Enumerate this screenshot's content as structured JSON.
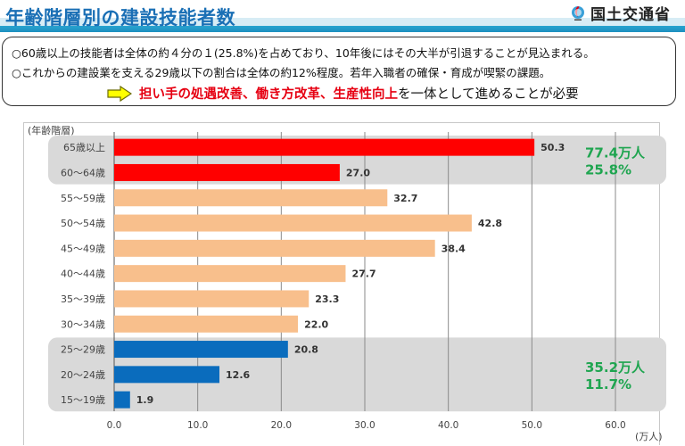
{
  "header": {
    "title": "年齢階層別の建設技能者数",
    "ministry": "国土交通省"
  },
  "notes": {
    "line1": "○60歳以上の技能者は全体の約４分の１(25.8%)を占めており、10年後にはその大半が引退することが見込まれる。",
    "line2": "○これからの建設業を支える29歳以下の割合は全体の約12%程度。若年入職者の確保・育成が喫緊の課題。",
    "emphasis": {
      "arrow_icon": "right-arrow-icon",
      "parts": [
        {
          "text": "担い手の処遇改善、働き方改革、生産性向上",
          "style": "red"
        },
        {
          "text": "を一体として進めることが必要",
          "style": "black"
        }
      ]
    }
  },
  "colors": {
    "title": "#1a6fb5",
    "older": "#ff0000",
    "middle": "#f8bf8c",
    "younger": "#0a6cbd",
    "highlight_bg": "#d9d9d9",
    "summary_text": "#1fa550",
    "emphasis_red": "#e60012"
  },
  "chart_data": {
    "type": "bar",
    "orientation": "horizontal",
    "title": "年齢階層別の建設技能者数",
    "ylabel": "(年齢階層)",
    "xlabel": "(万人)",
    "xlim": [
      0,
      60
    ],
    "xticks": [
      "0.0",
      "10.0",
      "20.0",
      "30.0",
      "40.0",
      "50.0",
      "60.0"
    ],
    "grid": true,
    "categories": [
      "65歳以上",
      "60～64歳",
      "55～59歳",
      "50～54歳",
      "45～49歳",
      "40～44歳",
      "35～39歳",
      "30～34歳",
      "25～29歳",
      "20～24歳",
      "15～19歳"
    ],
    "values": [
      50.3,
      27.0,
      32.7,
      42.8,
      38.4,
      27.7,
      23.3,
      22.0,
      20.8,
      12.6,
      1.9
    ],
    "value_labels": [
      "50.3",
      "27.0",
      "32.7",
      "42.8",
      "38.4",
      "27.7",
      "23.3",
      "22.0",
      "20.8",
      "12.6",
      "1.9"
    ],
    "groups": [
      "older",
      "older",
      "middle",
      "middle",
      "middle",
      "middle",
      "middle",
      "middle",
      "younger",
      "younger",
      "younger"
    ],
    "annotations": [
      {
        "group": "older",
        "range": [
          "65歳以上",
          "60～64歳"
        ],
        "total": "77.4万人",
        "share": "25.8%"
      },
      {
        "group": "younger",
        "range": [
          "25～29歳",
          "15～19歳"
        ],
        "total": "35.2万人",
        "share": "11.7%"
      }
    ]
  }
}
